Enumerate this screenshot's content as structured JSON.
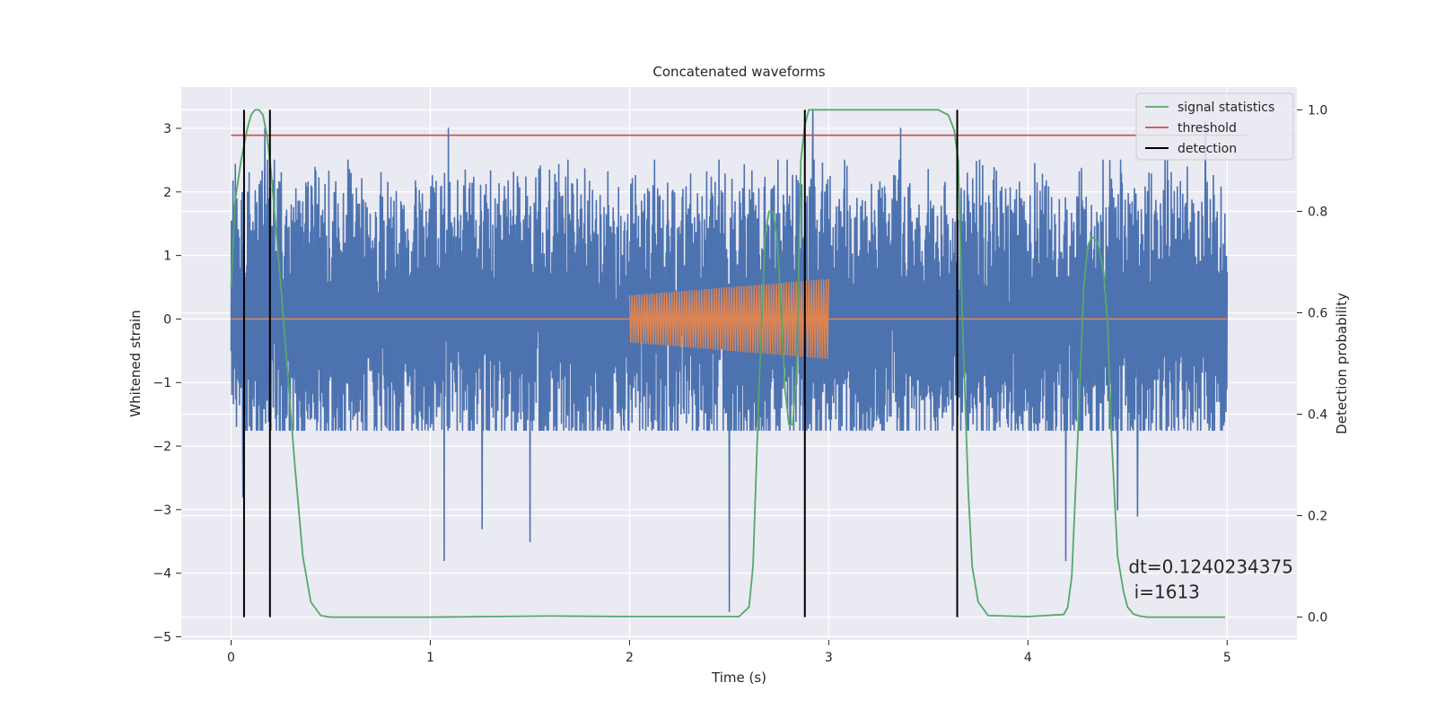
{
  "chart_data": {
    "type": "line",
    "title": "Concatenated waveforms",
    "xlabel": "Time (s)",
    "ylabel": "Whitened strain",
    "y2label": "Detection probability",
    "xlim": [
      -0.25,
      5.35
    ],
    "ylim": [
      -5.05,
      3.65
    ],
    "y2lim": [
      -0.045,
      1.045
    ],
    "xticks": [
      0,
      1,
      2,
      3,
      4,
      5
    ],
    "xtick_labels": [
      "0",
      "1",
      "2",
      "3",
      "4",
      "5"
    ],
    "yticks": [
      -5,
      -4,
      -3,
      -2,
      -1,
      0,
      1,
      2,
      3
    ],
    "ytick_labels": [
      "−5",
      "−4",
      "−3",
      "−2",
      "−1",
      "0",
      "1",
      "2",
      "3"
    ],
    "y2ticks": [
      0,
      0.2,
      0.4,
      0.6,
      0.8,
      1.0
    ],
    "y2tick_labels": [
      "0.0",
      "0.2",
      "0.4",
      "0.6",
      "0.8",
      "1.0"
    ],
    "grid": true,
    "background": "#eaeaf2",
    "legend_position": "top-right",
    "noise": {
      "x_range": [
        0,
        5
      ],
      "typical_range": [
        -1.6,
        2.3
      ],
      "extremes_positive": [
        [
          0.17,
          3.0
        ],
        [
          1.09,
          3.0
        ],
        [
          2.92,
          3.3
        ],
        [
          3.36,
          3.0
        ],
        [
          4.89,
          3.1
        ]
      ],
      "extremes_negative": [
        [
          0.06,
          -2.8
        ],
        [
          1.07,
          -3.8
        ],
        [
          1.26,
          -3.3
        ],
        [
          1.5,
          -3.5
        ],
        [
          2.5,
          -4.6
        ],
        [
          4.19,
          -3.8
        ],
        [
          4.45,
          -3.0
        ],
        [
          4.55,
          -3.1
        ]
      ],
      "color": "#4c72b0"
    },
    "injection": {
      "x_range": [
        2.0,
        3.0
      ],
      "amplitude_start": 0.37,
      "amplitude_end": 0.63,
      "color": "#dd8452"
    },
    "series": [
      {
        "name": "signal statistics",
        "axis": "right",
        "color": "#55a868",
        "x": [
          0.0,
          0.02,
          0.05,
          0.08,
          0.1,
          0.12,
          0.14,
          0.16,
          0.18,
          0.2,
          0.22,
          0.25,
          0.28,
          0.32,
          0.36,
          0.4,
          0.45,
          0.48,
          0.5,
          1.0,
          1.6,
          2.0,
          2.4,
          2.55,
          2.6,
          2.62,
          2.65,
          2.68,
          2.7,
          2.72,
          2.74,
          2.76,
          2.78,
          2.8,
          2.82,
          2.84,
          2.86,
          2.88,
          2.9,
          2.95,
          3.0,
          3.3,
          3.55,
          3.6,
          3.63,
          3.65,
          3.67,
          3.7,
          3.72,
          3.75,
          3.8,
          4.0,
          4.18,
          4.2,
          4.22,
          4.25,
          4.28,
          4.3,
          4.32,
          4.35,
          4.38,
          4.4,
          4.42,
          4.45,
          4.48,
          4.5,
          4.53,
          4.56,
          4.6,
          4.99
        ],
        "y": [
          0.65,
          0.82,
          0.9,
          0.96,
          0.99,
          1.0,
          1.0,
          0.99,
          0.95,
          0.88,
          0.79,
          0.65,
          0.5,
          0.3,
          0.12,
          0.03,
          0.003,
          0.001,
          0.0,
          0.0,
          0.002,
          0.001,
          0.001,
          0.001,
          0.02,
          0.1,
          0.45,
          0.75,
          0.8,
          0.8,
          0.75,
          0.62,
          0.45,
          0.38,
          0.38,
          0.5,
          0.9,
          0.97,
          1.0,
          1.0,
          1.0,
          1.0,
          1.0,
          0.99,
          0.96,
          0.9,
          0.6,
          0.25,
          0.1,
          0.03,
          0.003,
          0.001,
          0.005,
          0.02,
          0.08,
          0.35,
          0.65,
          0.73,
          0.75,
          0.74,
          0.68,
          0.58,
          0.35,
          0.12,
          0.05,
          0.02,
          0.006,
          0.002,
          0.0,
          0.0
        ]
      },
      {
        "name": "threshold",
        "axis": "right",
        "color": "#c44e52",
        "x": [
          0,
          5.1
        ],
        "y": [
          0.95,
          0.95
        ]
      },
      {
        "name": "detection",
        "axis": "right",
        "color": "#000000",
        "vlines_x": [
          0.065,
          0.195,
          2.88,
          3.645
        ],
        "ymin": 0.0,
        "ymax": 1.0
      }
    ],
    "annotation": {
      "lines": [
        "dt=0.1240234375",
        " i=1613"
      ],
      "x": 4.5,
      "y": -4.0
    }
  }
}
